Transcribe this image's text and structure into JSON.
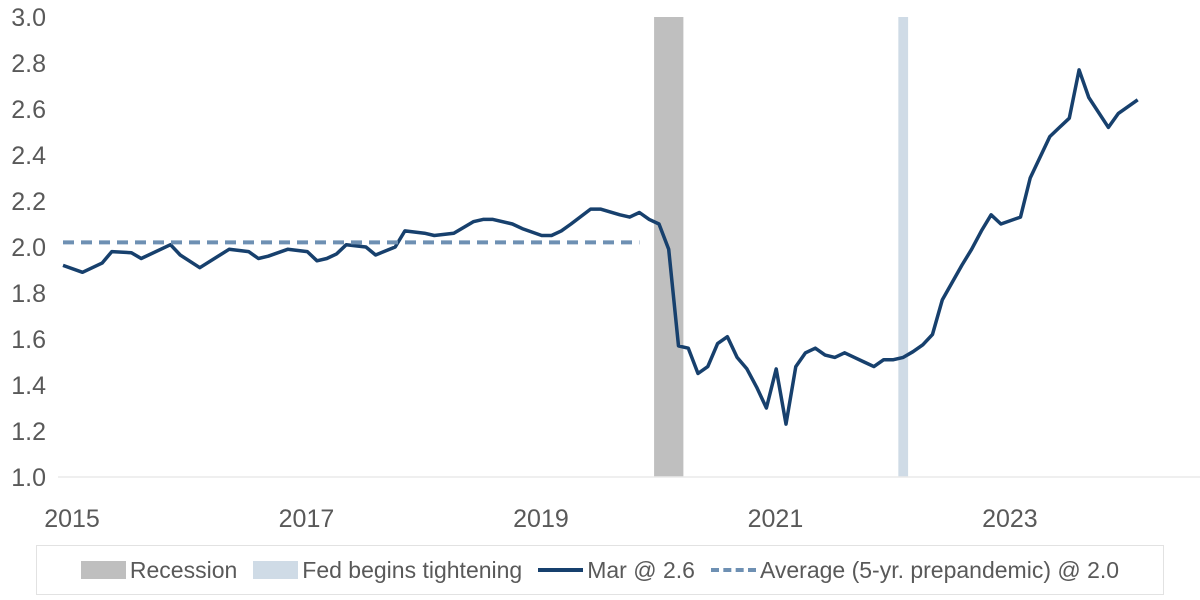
{
  "chart_data": {
    "type": "line",
    "title": "",
    "xlabel": "",
    "ylabel": "",
    "ylim": [
      1.0,
      3.0
    ],
    "yticks": [
      "1.0",
      "1.2",
      "1.4",
      "1.6",
      "1.8",
      "2.0",
      "2.2",
      "2.4",
      "2.6",
      "2.8",
      "3.0"
    ],
    "xticks": [
      "2015",
      "2017",
      "2019",
      "2021",
      "2023"
    ],
    "grid": "baseline only",
    "legend_position": "bottom",
    "series": [
      {
        "name": "Mar @ 2.6",
        "color": "#17406d",
        "style": "solid",
        "points": [
          [
            "2015-01",
            1.92
          ],
          [
            "2015-03",
            1.89
          ],
          [
            "2015-05",
            1.93
          ],
          [
            "2015-06",
            1.98
          ],
          [
            "2015-08",
            1.975
          ],
          [
            "2015-09",
            1.95
          ],
          [
            "2015-12",
            2.01
          ],
          [
            "2016-01",
            1.965
          ],
          [
            "2016-03",
            1.91
          ],
          [
            "2016-06",
            1.99
          ],
          [
            "2016-08",
            1.98
          ],
          [
            "2016-09",
            1.95
          ],
          [
            "2016-10",
            1.96
          ],
          [
            "2016-12",
            1.99
          ],
          [
            "2017-02",
            1.98
          ],
          [
            "2017-03",
            1.94
          ],
          [
            "2017-04",
            1.95
          ],
          [
            "2017-05",
            1.97
          ],
          [
            "2017-06",
            2.01
          ],
          [
            "2017-08",
            2.0
          ],
          [
            "2017-09",
            1.965
          ],
          [
            "2017-11",
            2.0
          ],
          [
            "2017-12",
            2.07
          ],
          [
            "2018-02",
            2.06
          ],
          [
            "2018-03",
            2.05
          ],
          [
            "2018-05",
            2.06
          ],
          [
            "2018-07",
            2.11
          ],
          [
            "2018-08",
            2.12
          ],
          [
            "2018-09",
            2.12
          ],
          [
            "2018-11",
            2.1
          ],
          [
            "2018-12",
            2.08
          ],
          [
            "2019-02",
            2.05
          ],
          [
            "2019-03",
            2.05
          ],
          [
            "2019-04",
            2.07
          ],
          [
            "2019-05",
            2.1
          ],
          [
            "2019-07",
            2.165
          ],
          [
            "2019-08",
            2.165
          ],
          [
            "2019-10",
            2.14
          ],
          [
            "2019-11",
            2.13
          ],
          [
            "2019-12",
            2.15
          ],
          [
            "2020-01",
            2.12
          ],
          [
            "2020-02",
            2.1
          ],
          [
            "2020-03",
            1.99
          ],
          [
            "2020-04",
            1.57
          ],
          [
            "2020-05",
            1.56
          ],
          [
            "2020-06",
            1.45
          ],
          [
            "2020-07",
            1.48
          ],
          [
            "2020-08",
            1.58
          ],
          [
            "2020-09",
            1.61
          ],
          [
            "2020-10",
            1.52
          ],
          [
            "2020-11",
            1.47
          ],
          [
            "2020-12",
            1.39
          ],
          [
            "2021-01",
            1.3
          ],
          [
            "2021-02",
            1.47
          ],
          [
            "2021-03",
            1.23
          ],
          [
            "2021-04",
            1.48
          ],
          [
            "2021-05",
            1.54
          ],
          [
            "2021-06",
            1.56
          ],
          [
            "2021-07",
            1.53
          ],
          [
            "2021-08",
            1.52
          ],
          [
            "2021-09",
            1.54
          ],
          [
            "2021-10",
            1.52
          ],
          [
            "2021-11",
            1.5
          ],
          [
            "2021-12",
            1.48
          ],
          [
            "2022-01",
            1.51
          ],
          [
            "2022-02",
            1.51
          ],
          [
            "2022-03",
            1.52
          ],
          [
            "2022-04",
            1.545
          ],
          [
            "2022-05",
            1.575
          ],
          [
            "2022-06",
            1.62
          ],
          [
            "2022-07",
            1.77
          ],
          [
            "2022-09",
            1.92
          ],
          [
            "2022-10",
            1.99
          ],
          [
            "2022-11",
            2.07
          ],
          [
            "2022-12",
            2.14
          ],
          [
            "2023-01",
            2.1
          ],
          [
            "2023-03",
            2.13
          ],
          [
            "2023-04",
            2.3
          ],
          [
            "2023-06",
            2.48
          ],
          [
            "2023-07",
            2.52
          ],
          [
            "2023-08",
            2.56
          ],
          [
            "2023-09",
            2.77
          ],
          [
            "2023-10",
            2.65
          ],
          [
            "2023-12",
            2.52
          ],
          [
            "2024-01",
            2.58
          ],
          [
            "2024-03",
            2.64
          ]
        ]
      },
      {
        "name": "Average (5-yr. prepandemic) @ 2.0",
        "color": "#6e90b3",
        "style": "dashed",
        "points": [
          [
            "2015-01",
            2.02
          ],
          [
            "2019-12",
            2.02
          ]
        ]
      }
    ],
    "bands": [
      {
        "name": "Recession",
        "color": "#bfbfbf",
        "start": "2020-02",
        "end": "2020-04"
      },
      {
        "name": "Fed begins tightening",
        "color": "#cfdbe6",
        "start": "2022-03",
        "end": "2022-03"
      }
    ]
  },
  "legend": {
    "recession": "Recession",
    "fed": "Fed begins tightening",
    "series": "Mar @ 2.6",
    "average": "Average (5-yr. prepandemic) @ 2.0"
  }
}
